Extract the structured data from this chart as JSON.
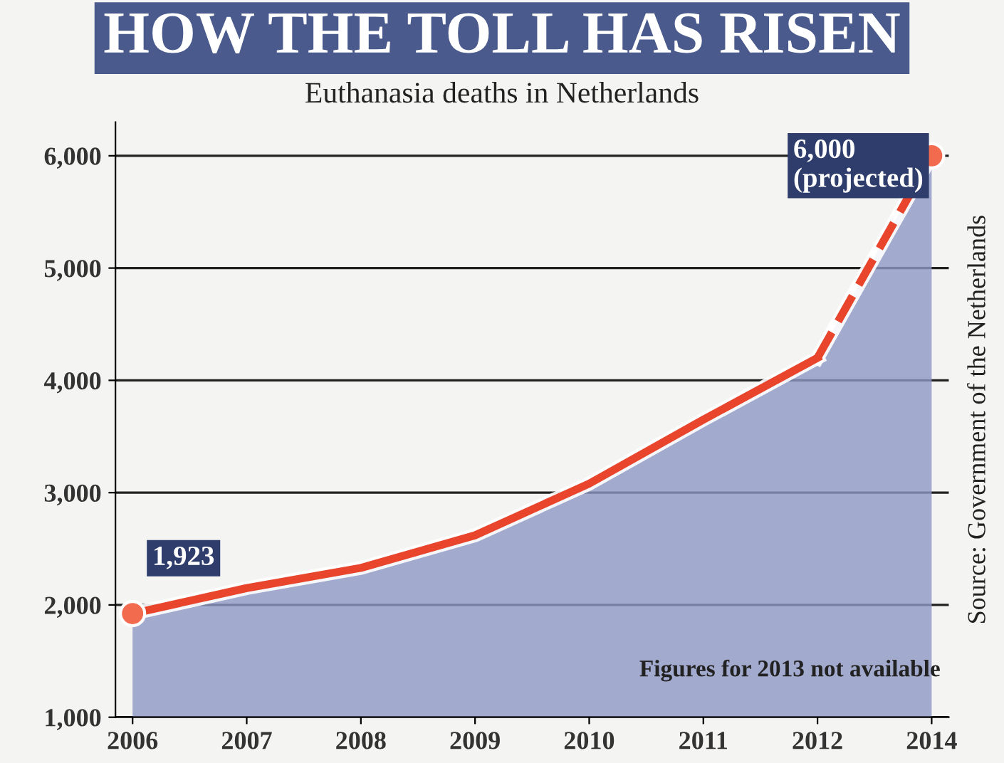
{
  "chart_data": {
    "type": "line",
    "title": "HOW THE TOLL HAS RISEN",
    "subtitle": "Euthanasia deaths in Netherlands",
    "categories": [
      "2006",
      "2007",
      "2008",
      "2009",
      "2010",
      "2011",
      "2012",
      "2014"
    ],
    "series": [
      {
        "type": "area",
        "color": "#8d97c4",
        "values": [
          1923,
          2150,
          2330,
          2620,
          3080,
          3650,
          4200,
          6000
        ]
      },
      {
        "color": "#e8452c",
        "line_style": "solid",
        "values": [
          1923,
          2150,
          2330,
          2620,
          3080,
          3650,
          4200,
          null
        ]
      },
      {
        "color": "#e8452c",
        "line_style": "dashed",
        "values": [
          null,
          null,
          null,
          null,
          null,
          null,
          4200,
          6000
        ]
      },
      {
        "type": "scatter",
        "color": "#f26b4f",
        "marker": "circle",
        "values": [
          1923,
          null,
          null,
          null,
          null,
          null,
          null,
          6000
        ]
      }
    ],
    "ylim": [
      1000,
      6300
    ],
    "yticks": [
      {
        "value": 1000,
        "label": "1,000"
      },
      {
        "value": 2000,
        "label": "2,000"
      },
      {
        "value": 3000,
        "label": "3,000"
      },
      {
        "value": 4000,
        "label": "4,000"
      },
      {
        "value": 5000,
        "label": "5,000"
      },
      {
        "value": 6000,
        "label": "6,000"
      }
    ],
    "grid": "y",
    "annotations": [
      {
        "text": "1,923",
        "x": "2006",
        "y": 1923
      },
      {
        "text": "6,000\n(projected)",
        "x": "2014",
        "y": 6000
      },
      "Figures for 2013 not available",
      "Source: Government of the Netherlands"
    ]
  }
}
